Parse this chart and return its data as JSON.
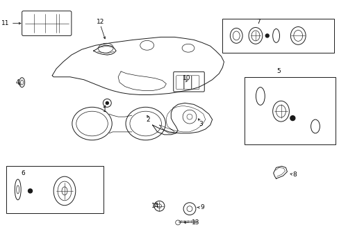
{
  "bg_color": "#ffffff",
  "line_color": "#1a1a1a",
  "lw": 0.7,
  "figsize": [
    4.89,
    3.6
  ],
  "dpi": 100,
  "label_fontsize": 6.5,
  "labels": {
    "11": [
      0.13,
      3.28,
      "right"
    ],
    "12": [
      1.42,
      3.3,
      "center"
    ],
    "4": [
      0.22,
      2.42,
      "center"
    ],
    "1": [
      1.42,
      2.0,
      "center"
    ],
    "2": [
      2.12,
      1.88,
      "center"
    ],
    "10": [
      2.68,
      2.42,
      "center"
    ],
    "7": [
      3.72,
      3.28,
      "center"
    ],
    "3": [
      2.88,
      1.82,
      "center"
    ],
    "5": [
      4.02,
      2.32,
      "center"
    ],
    "6": [
      0.32,
      1.08,
      "center"
    ],
    "8": [
      4.18,
      1.05,
      "left"
    ],
    "14": [
      2.22,
      0.62,
      "center"
    ],
    "9": [
      2.88,
      0.62,
      "left"
    ],
    "13": [
      2.72,
      0.38,
      "left"
    ]
  }
}
